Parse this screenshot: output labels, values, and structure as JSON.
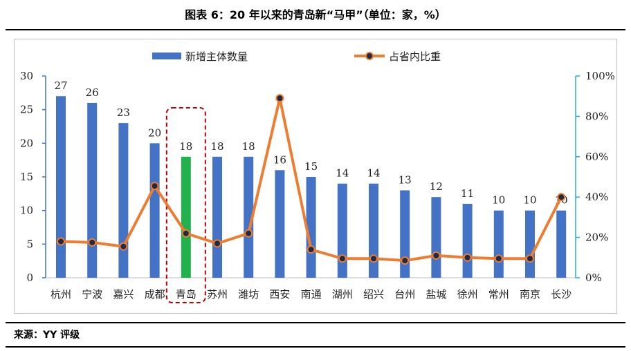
{
  "header": {
    "title": "图表 6：20 年以来的青岛新“马甲”（单位：家，%）"
  },
  "footer": {
    "source": "来源：YY 评级"
  },
  "colors": {
    "bar": "#4472C4",
    "bar_highlight": "#22B14C",
    "line": "#ED7D31",
    "marker": "#1F2A44",
    "right_axis": "#29A9E0",
    "highlight_box": "#C00000"
  },
  "chart_data": {
    "type": "bar",
    "categories": [
      "杭州",
      "宁波",
      "嘉兴",
      "成都",
      "青岛",
      "苏州",
      "潍坊",
      "西安",
      "南通",
      "湖州",
      "绍兴",
      "台州",
      "盐城",
      "徐州",
      "常州",
      "南京",
      "长沙"
    ],
    "highlight_category": "青岛",
    "series": [
      {
        "name": "新增主体数量",
        "type": "bar",
        "axis": "left",
        "values": [
          27,
          26,
          23,
          20,
          18,
          18,
          18,
          16,
          15,
          14,
          14,
          13,
          12,
          11,
          10,
          10,
          10
        ],
        "data_labels": [
          "27",
          "26",
          "23",
          "20",
          "18",
          "18",
          "18",
          "16",
          "15",
          "14",
          "14",
          "13",
          "12",
          "11",
          "10",
          "10",
          "10"
        ]
      },
      {
        "name": "占省内比重",
        "type": "line",
        "axis": "right",
        "values": [
          18,
          17.5,
          15.5,
          45.5,
          22,
          17,
          22,
          89,
          14,
          9.5,
          9.5,
          8.5,
          11,
          10,
          9.5,
          9.5,
          40
        ]
      }
    ],
    "left_axis": {
      "ylim": [
        0,
        30
      ],
      "ticks": [
        "0",
        "5",
        "10",
        "15",
        "20",
        "25",
        "30"
      ]
    },
    "right_axis": {
      "ylim": [
        0,
        100
      ],
      "ticks": [
        "0%",
        "20%",
        "40%",
        "60%",
        "80%",
        "100%"
      ]
    },
    "legend": {
      "position": "top"
    },
    "grid": false
  }
}
